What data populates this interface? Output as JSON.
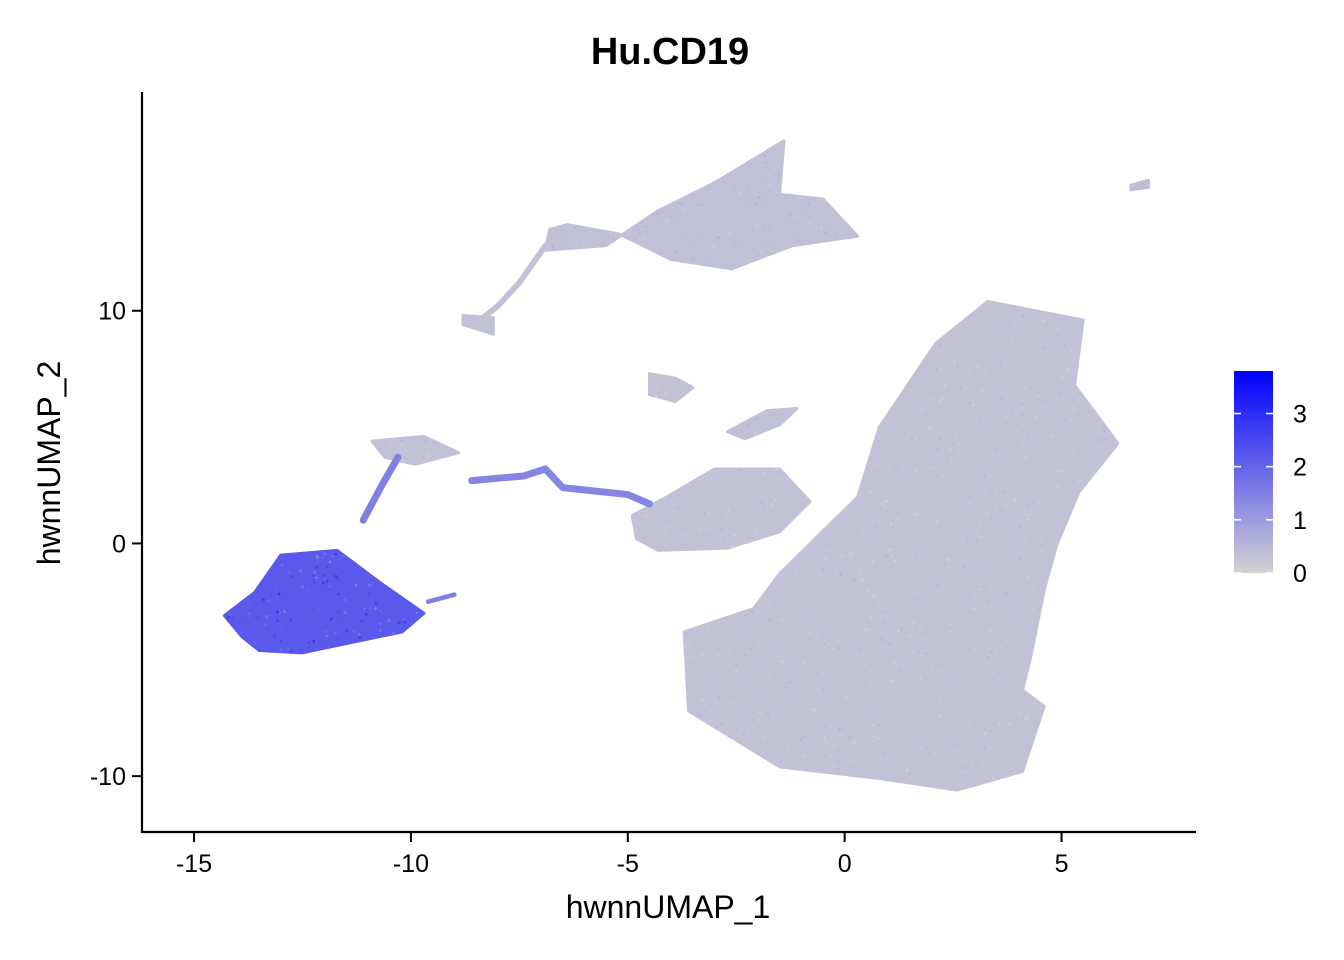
{
  "chart_data": {
    "type": "scatter",
    "title": "Hu.CD19",
    "xlabel": "hwnnUMAP_1",
    "ylabel": "hwnnUMAP_2",
    "xlim": [
      -16.2,
      8.1
    ],
    "ylim": [
      -12.4,
      19.4
    ],
    "x_ticks": [
      -15,
      -10,
      -5,
      0,
      5
    ],
    "x_tick_labels": [
      "-15",
      "-10",
      "-5",
      "0",
      "5"
    ],
    "y_ticks": [
      -10,
      0,
      10
    ],
    "y_tick_labels": [
      "-10",
      "0",
      "10"
    ],
    "grid": false,
    "legend": {
      "placement": "right",
      "type": "colorbar",
      "min": 0,
      "max": 3.8,
      "ticks": [
        0,
        1,
        2,
        3
      ],
      "tick_labels": [
        "0",
        "1",
        "2",
        "3"
      ],
      "color_low": "#d3d3d3",
      "color_high": "#0000ff"
    },
    "clusters": [
      {
        "name": "large main cluster",
        "expression": 0.3,
        "polygon": [
          [
            3.3,
            10.4
          ],
          [
            5.5,
            9.6
          ],
          [
            5.3,
            6.8
          ],
          [
            6.3,
            4.3
          ],
          [
            5.4,
            2.2
          ],
          [
            4.9,
            0
          ],
          [
            4.6,
            -2
          ],
          [
            4.3,
            -4.8
          ],
          [
            4.1,
            -6.3
          ],
          [
            4.6,
            -7
          ],
          [
            4.1,
            -9.8
          ],
          [
            2.6,
            -10.6
          ],
          [
            0.8,
            -10.1
          ],
          [
            -1.5,
            -9.6
          ],
          [
            -3.6,
            -7.2
          ],
          [
            -3.7,
            -3.8
          ],
          [
            -2.1,
            -2.8
          ],
          [
            -1.5,
            -1.3
          ],
          [
            0.3,
            2
          ],
          [
            0.8,
            5
          ],
          [
            2.1,
            8.6
          ]
        ]
      },
      {
        "name": "middle cluster",
        "expression": 0.3,
        "polygon": [
          [
            -3,
            3.2
          ],
          [
            -1.5,
            3.2
          ],
          [
            -0.8,
            1.8
          ],
          [
            -1.5,
            0.5
          ],
          [
            -2.7,
            -0.2
          ],
          [
            -4.3,
            -0.3
          ],
          [
            -4.8,
            0.2
          ],
          [
            -4.9,
            1.2
          ],
          [
            -4.1,
            2
          ]
        ]
      },
      {
        "name": "upper cluster",
        "expression": 0.35,
        "polygon": [
          [
            -3,
            15.5
          ],
          [
            -1.4,
            17.3
          ],
          [
            -1.5,
            15
          ],
          [
            -0.5,
            14.8
          ],
          [
            0.3,
            13.2
          ],
          [
            -1.2,
            12.8
          ],
          [
            -2.6,
            11.8
          ],
          [
            -4,
            12.2
          ],
          [
            -5.2,
            13.3
          ],
          [
            -6.4,
            13.7
          ],
          [
            -6.8,
            13.5
          ],
          [
            -6.9,
            12.6
          ],
          [
            -5.5,
            12.8
          ],
          [
            -4.3,
            14.3
          ]
        ]
      },
      {
        "name": "B cell cluster",
        "expression": 2.2,
        "polygon": [
          [
            -13,
            -0.5
          ],
          [
            -11.7,
            -0.3
          ],
          [
            -10.7,
            -1.7
          ],
          [
            -9.7,
            -3
          ],
          [
            -10.2,
            -3.8
          ],
          [
            -12.5,
            -4.7
          ],
          [
            -13.5,
            -4.6
          ],
          [
            -13.9,
            -4
          ],
          [
            -14.3,
            -3.1
          ],
          [
            -13.6,
            -2.1
          ]
        ]
      },
      {
        "name": "small cluster left",
        "expression": 0.3,
        "polygon": [
          [
            -9.7,
            4.6
          ],
          [
            -8.9,
            3.9
          ],
          [
            -9.9,
            3.4
          ],
          [
            -10.6,
            3.7
          ],
          [
            -10.9,
            4.4
          ]
        ]
      },
      {
        "name": "small cluster center",
        "expression": 0.3,
        "polygon": [
          [
            -4.5,
            7.3
          ],
          [
            -3.9,
            7.1
          ],
          [
            -3.5,
            6.7
          ],
          [
            -3.9,
            6.1
          ],
          [
            -4.5,
            6.4
          ]
        ]
      },
      {
        "name": "small cluster right",
        "expression": 0.35,
        "polygon": [
          [
            -1.8,
            5.7
          ],
          [
            -1.1,
            5.8
          ],
          [
            -1.5,
            5.1
          ],
          [
            -2.3,
            4.5
          ],
          [
            -2.7,
            4.8
          ]
        ]
      },
      {
        "name": "far right islet",
        "expression": 0.4,
        "polygon": [
          [
            6.6,
            15.4
          ],
          [
            7.0,
            15.6
          ],
          [
            7.0,
            15.3
          ],
          [
            6.6,
            15.2
          ]
        ]
      },
      {
        "name": "left stem",
        "expression": 0.3,
        "polyline": [
          [
            -8.4,
            9.6
          ],
          [
            -8.0,
            10.2
          ],
          [
            -7.5,
            11.2
          ],
          [
            -6.9,
            12.8
          ]
        ],
        "width": 0.25
      },
      {
        "name": "left stem base",
        "expression": 0.3,
        "polygon": [
          [
            -8.8,
            9.8
          ],
          [
            -8.1,
            9.7
          ],
          [
            -8.1,
            9.0
          ],
          [
            -8.8,
            9.4
          ]
        ]
      },
      {
        "name": "purple strand",
        "expression": 1.4,
        "polyline": [
          [
            -8.6,
            2.7
          ],
          [
            -7.4,
            2.9
          ],
          [
            -6.9,
            3.2
          ],
          [
            -6.5,
            2.4
          ],
          [
            -5,
            2.1
          ],
          [
            -4.5,
            1.7
          ]
        ],
        "width": 0.3
      },
      {
        "name": "purple stem",
        "expression": 1.5,
        "polyline": [
          [
            -11.1,
            1.0
          ],
          [
            -10.7,
            2.4
          ],
          [
            -10.3,
            3.7
          ]
        ],
        "width": 0.3
      },
      {
        "name": "B cell tail",
        "expression": 1.5,
        "polyline": [
          [
            -9.6,
            -2.5
          ],
          [
            -9.0,
            -2.2
          ]
        ],
        "width": 0.2
      }
    ]
  }
}
